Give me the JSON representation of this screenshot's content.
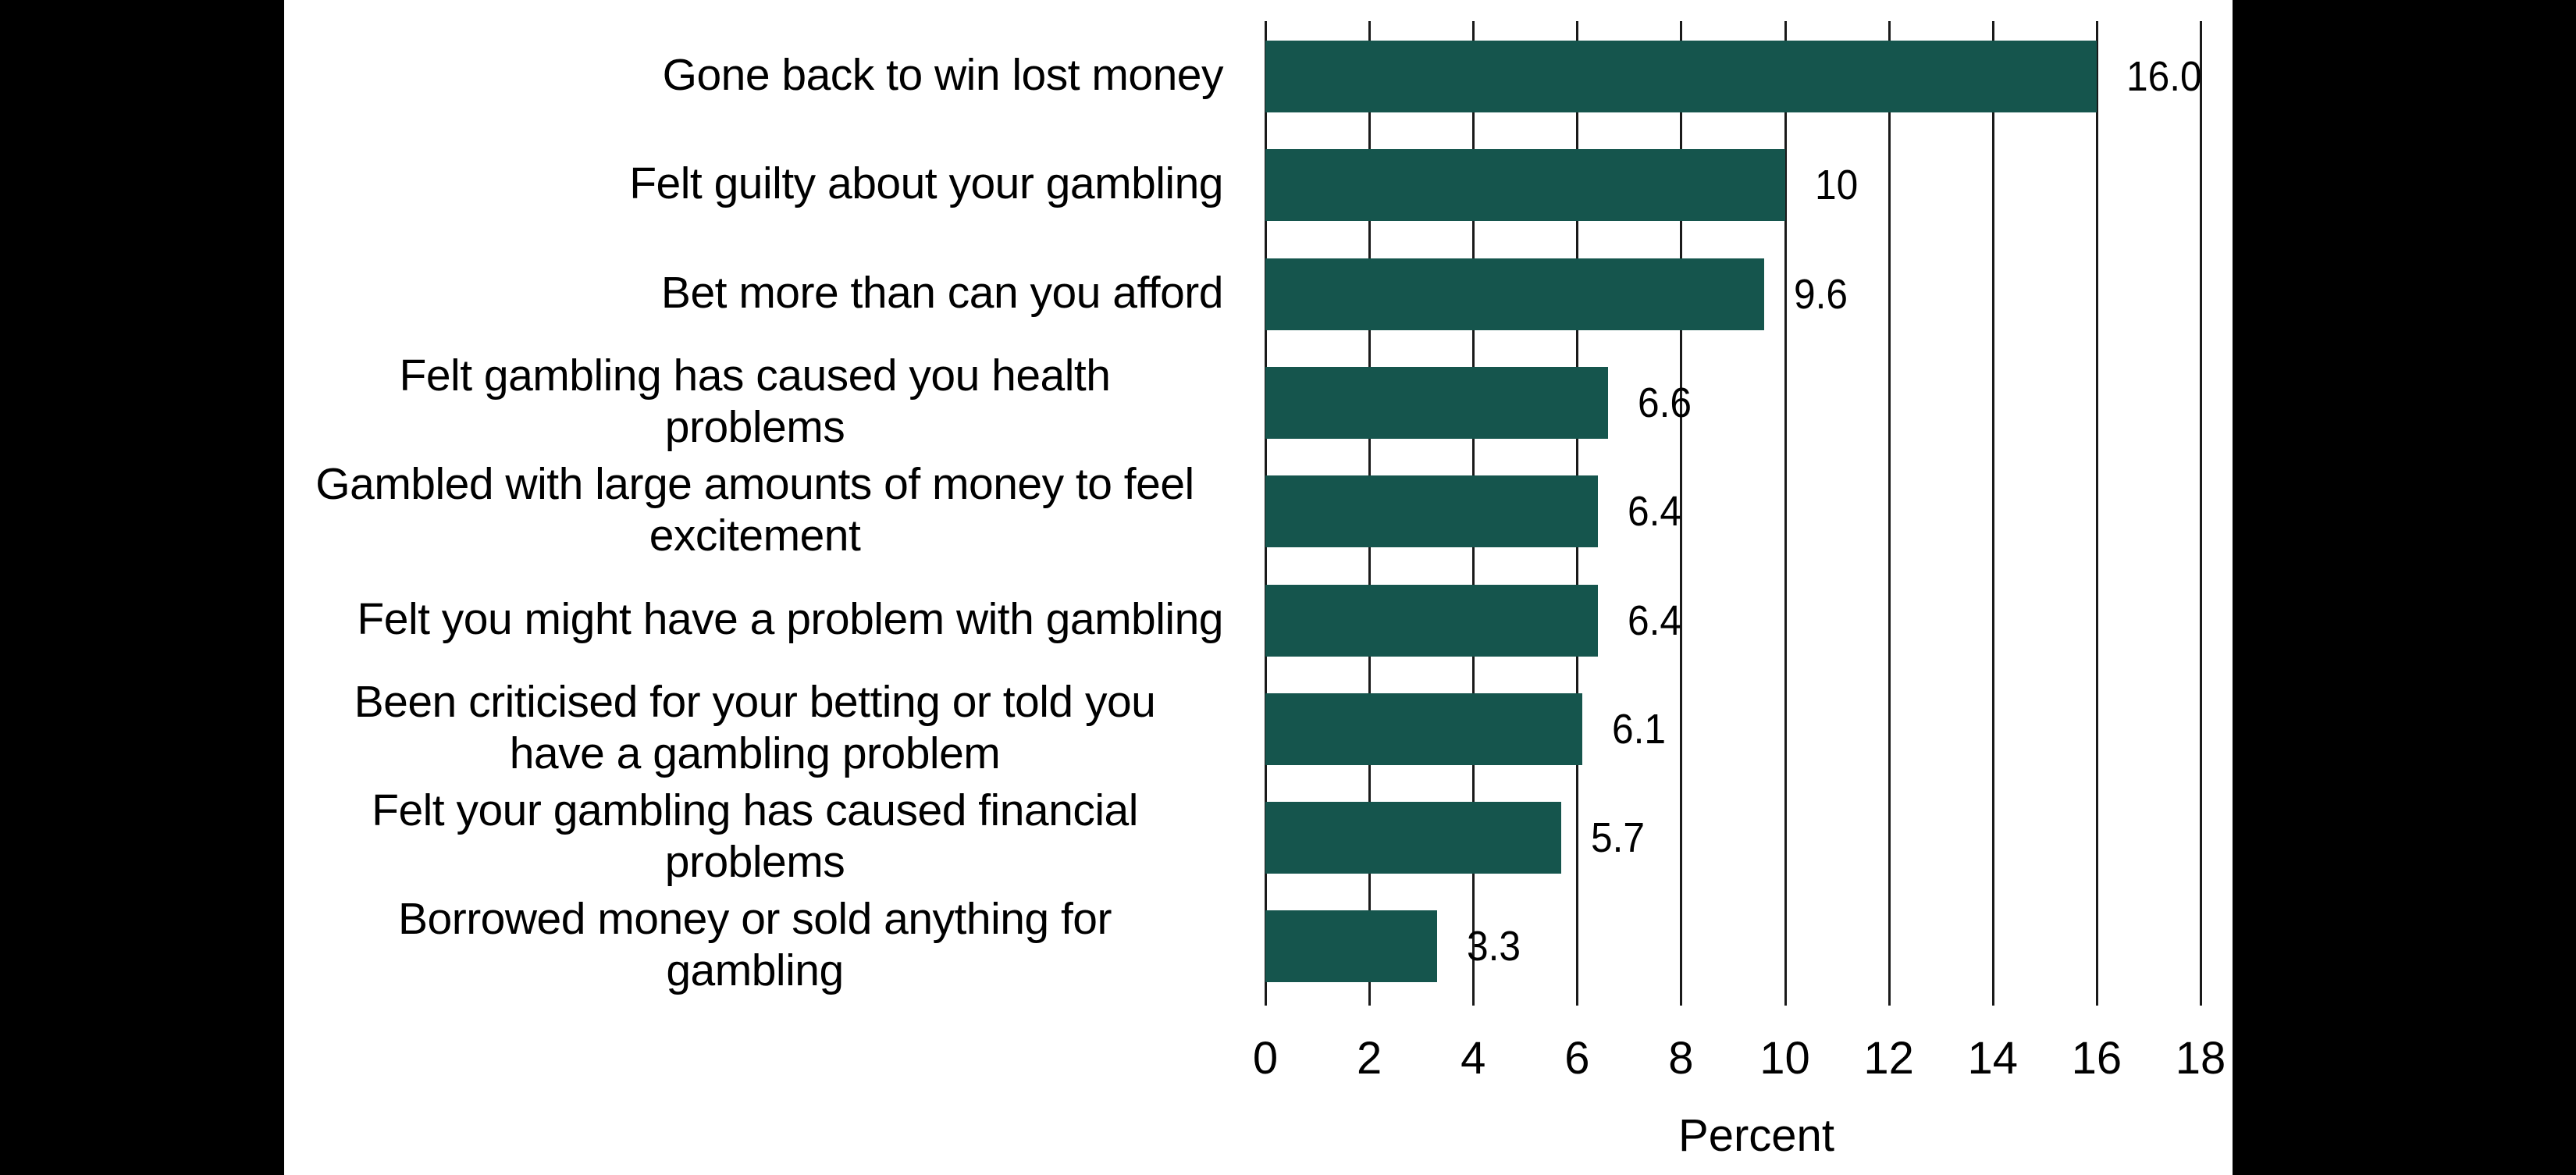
{
  "chart_data": {
    "type": "bar",
    "orientation": "horizontal",
    "title": "",
    "xlabel": "Percent",
    "ylabel": "",
    "xlim": [
      0,
      18
    ],
    "x_ticks": [
      0,
      2,
      4,
      6,
      8,
      10,
      12,
      14,
      16,
      18
    ],
    "grid": "vertical",
    "legend": null,
    "bar_color": "#15554d",
    "categories": [
      "Gone back to win lost money",
      "Felt guilty about your gambling",
      "Bet more than can you afford",
      "Felt gambling has caused you health problems",
      "Gambled with large amounts of money to feel excitement",
      "Felt you might have a problem with gambling",
      "Been criticised for your betting or told you have a gambling problem",
      "Felt your gambling has caused financial problems",
      "Borrowed money or sold anything for gambling"
    ],
    "values": [
      16.0,
      10,
      9.6,
      6.6,
      6.4,
      6.4,
      6.1,
      5.7,
      3.3
    ],
    "value_labels": [
      "16.0",
      "10",
      "9.6",
      "6.6",
      "6.4",
      "6.4",
      "6.1",
      "5.7",
      "3.3"
    ]
  },
  "rows": [
    {
      "lines": [
        "Gone back to win lost money"
      ],
      "value_label": "16.0"
    },
    {
      "lines": [
        "Felt guilty about your gambling"
      ],
      "value_label": "10"
    },
    {
      "lines": [
        "Bet more than can you afford"
      ],
      "value_label": "9.6"
    },
    {
      "lines": [
        "Felt gambling has caused you health",
        "problems"
      ],
      "value_label": "6.6"
    },
    {
      "lines": [
        "Gambled with large amounts of money to feel",
        "excitement"
      ],
      "value_label": "6.4"
    },
    {
      "lines": [
        "Felt you might have a problem with gambling"
      ],
      "value_label": "6.4"
    },
    {
      "lines": [
        "Been criticised for your betting or told you",
        "have a gambling problem"
      ],
      "value_label": "6.1"
    },
    {
      "lines": [
        "Felt your gambling has caused financial",
        "problems"
      ],
      "value_label": "5.7"
    },
    {
      "lines": [
        "Borrowed money or sold anything for",
        "gambling"
      ],
      "value_label": "3.3"
    }
  ],
  "axis": {
    "ticks": [
      "0",
      "2",
      "4",
      "6",
      "8",
      "10",
      "12",
      "14",
      "16",
      "18"
    ],
    "title": "Percent"
  }
}
